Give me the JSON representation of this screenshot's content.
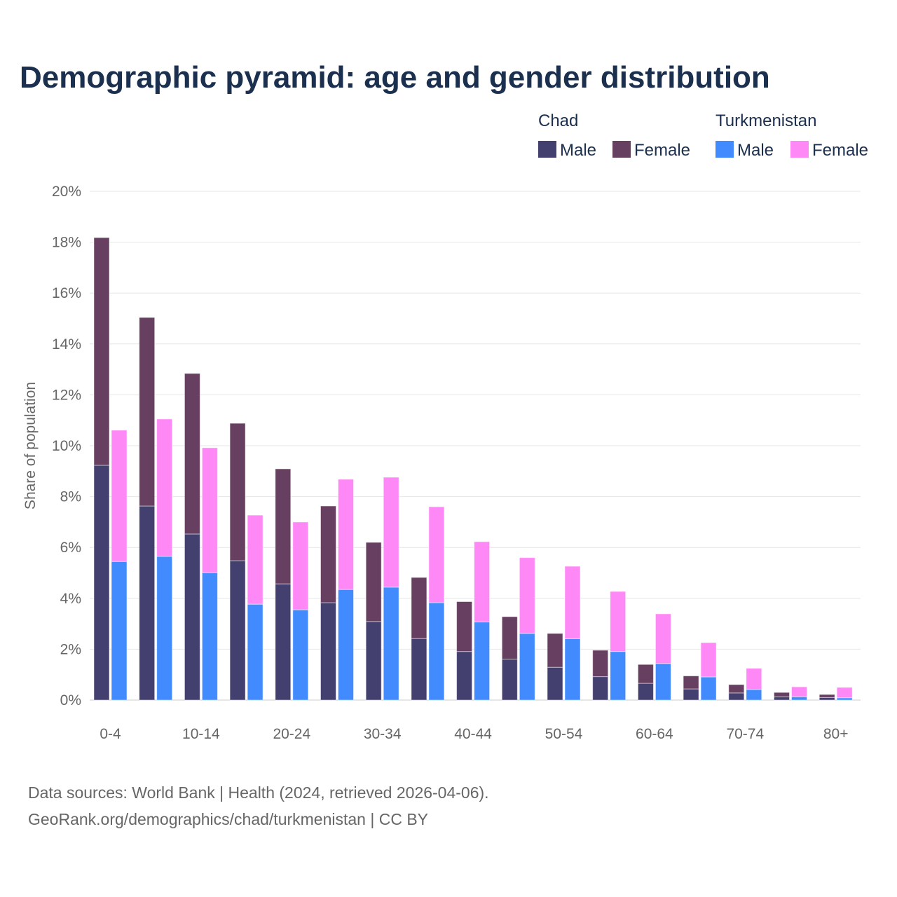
{
  "colors": {
    "chad_male": "#433f6e",
    "chad_female": "#673f60",
    "turk_male": "#418bff",
    "turk_female": "#ff88f7"
  },
  "chart_data": {
    "type": "bar",
    "title": "Demographic pyramid: age and gender distribution",
    "ylabel": "Share of population",
    "xlabel": "",
    "ylim": [
      0,
      20
    ],
    "yticks": [
      "0%",
      "2%",
      "4%",
      "6%",
      "8%",
      "10%",
      "12%",
      "14%",
      "16%",
      "18%",
      "20%"
    ],
    "grid": true,
    "legend_placement": "top-right",
    "stacked": true,
    "categories": [
      "0-4",
      "5-9",
      "10-14",
      "15-19",
      "20-24",
      "25-29",
      "30-34",
      "35-39",
      "40-44",
      "45-49",
      "50-54",
      "55-59",
      "60-64",
      "65-69",
      "70-74",
      "75-79",
      "80+"
    ],
    "xtick_labels": [
      "0-4",
      "10-14",
      "20-24",
      "30-34",
      "40-44",
      "50-54",
      "60-64",
      "70-74",
      "80+"
    ],
    "groups": [
      {
        "name": "Chad",
        "series": [
          {
            "name": "Male",
            "values": [
              9.23,
              7.63,
              6.53,
              5.48,
              4.57,
              3.83,
              3.09,
              2.42,
              1.91,
              1.61,
              1.29,
              0.92,
              0.66,
              0.44,
              0.28,
              0.13,
              0.1
            ]
          },
          {
            "name": "Female",
            "values": [
              8.95,
              7.41,
              6.31,
              5.4,
              4.52,
              3.8,
              3.11,
              2.4,
              1.96,
              1.67,
              1.33,
              1.04,
              0.74,
              0.51,
              0.33,
              0.17,
              0.12
            ]
          }
        ]
      },
      {
        "name": "Turkmenistan",
        "series": [
          {
            "name": "Male",
            "values": [
              5.45,
              5.65,
              5.01,
              3.77,
              3.55,
              4.35,
              4.44,
              3.83,
              3.07,
              2.62,
              2.41,
              1.91,
              1.44,
              0.91,
              0.42,
              0.13,
              0.09
            ]
          },
          {
            "name": "Female",
            "values": [
              5.16,
              5.4,
              4.91,
              3.5,
              3.45,
              4.33,
              4.32,
              3.77,
              3.16,
              2.98,
              2.85,
              2.36,
              1.95,
              1.35,
              0.83,
              0.39,
              0.41
            ]
          }
        ]
      }
    ]
  },
  "legend": {
    "chad": "Chad",
    "turkmenistan": "Turkmenistan",
    "male": "Male",
    "female": "Female"
  },
  "footer": {
    "line1": "Data sources: World Bank | Health (2024, retrieved 2026-04-06).",
    "line2": "GeoRank.org/demographics/chad/turkmenistan | CC BY"
  }
}
